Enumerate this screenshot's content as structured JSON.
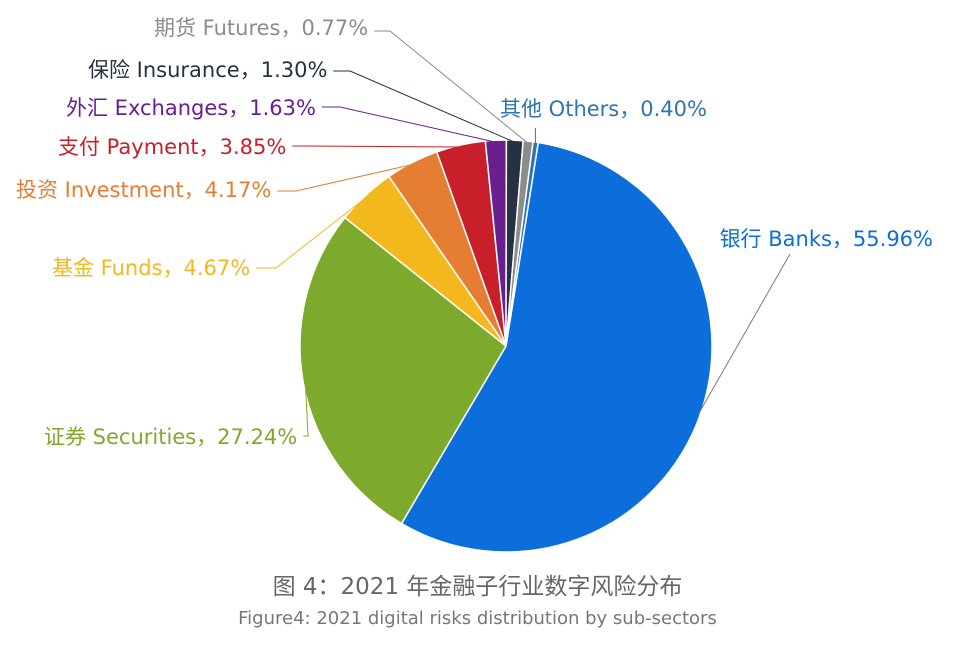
{
  "chart_data": {
    "type": "pie",
    "title": "图 4：2021 年金融子行业数字风险分布",
    "subtitle": "Figure4: 2021 digital risks distribution by sub-sectors",
    "slices": [
      {
        "label": "银行 Banks，55.96%",
        "value": 55.96,
        "color": "#0B6EDB"
      },
      {
        "label": "证券 Securities，27.24%",
        "value": 27.24,
        "color": "#7DAA2C"
      },
      {
        "label": "基金 Funds，4.67%",
        "value": 4.67,
        "color": "#F2B81D"
      },
      {
        "label": "投资 Investment，4.17%",
        "value": 4.17,
        "color": "#E57E32"
      },
      {
        "label": "支付 Payment，3.85%",
        "value": 3.85,
        "color": "#C81F2A"
      },
      {
        "label": "外汇 Exchanges，1.63%",
        "value": 1.63,
        "color": "#6A1F8F"
      },
      {
        "label": "保险 Insurance，1.30%",
        "value": 1.3,
        "color": "#263243"
      },
      {
        "label": "期货 Futures，0.77%",
        "value": 0.77,
        "color": "#8C8C8C"
      },
      {
        "label": "其他 Others，0.40%",
        "value": 0.4,
        "color": "#2E75B6"
      }
    ]
  }
}
